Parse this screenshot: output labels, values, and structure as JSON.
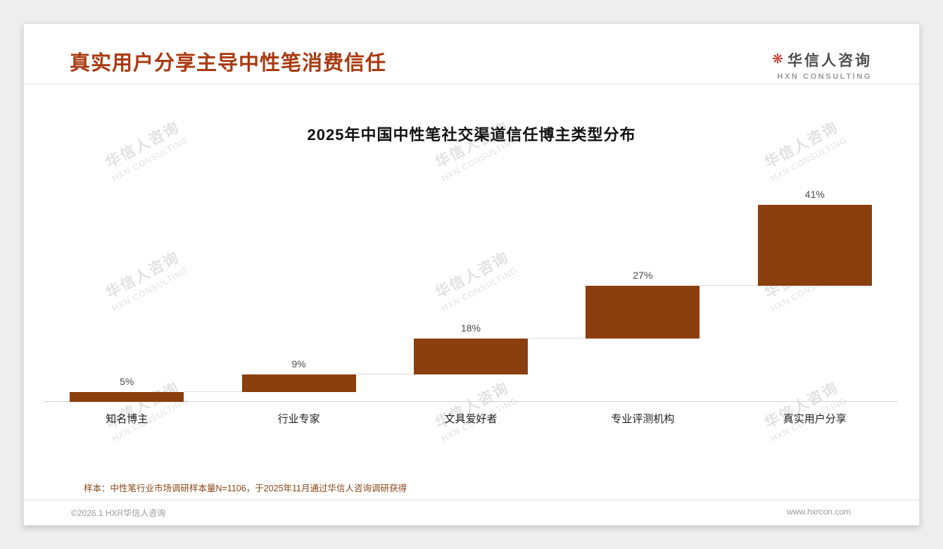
{
  "header": {
    "title": "真实用户分享主导中性笔消费信任",
    "logo": {
      "icon": "flower-asterisk-icon",
      "cn": "华信人咨询",
      "en": "HXN CONSULTING"
    }
  },
  "watermark": {
    "cn": "华信人咨询",
    "en": "HXN CONSULTING"
  },
  "chart_data": {
    "type": "bar",
    "variant": "waterfall",
    "title": "2025年中国中性笔社交渠道信任博主类型分布",
    "categories": [
      "知名博主",
      "行业专家",
      "文具爱好者",
      "专业评测机构",
      "真实用户分享"
    ],
    "values": [
      5,
      9,
      18,
      27,
      41
    ],
    "labels": [
      "5%",
      "9%",
      "18%",
      "27%",
      "41%"
    ],
    "cumulative_start": [
      0,
      5,
      14,
      32,
      59
    ],
    "unit": "%",
    "ylim": [
      0,
      100
    ],
    "grid": false,
    "legend": false,
    "bar_color": "#8B3E0E",
    "xlabel": "",
    "ylabel": ""
  },
  "footnote": {
    "text": "样本：中性笔行业市场调研样本量N=1106，于2025年11月通过华信人咨询调研获得"
  },
  "footer": {
    "left": "©2026.1 HXR华信人咨询",
    "right": "www.hxrcon.com"
  },
  "colors": {
    "accent_title": "#A93A10",
    "bar": "#8B3E0E",
    "note": "#8B4513"
  }
}
